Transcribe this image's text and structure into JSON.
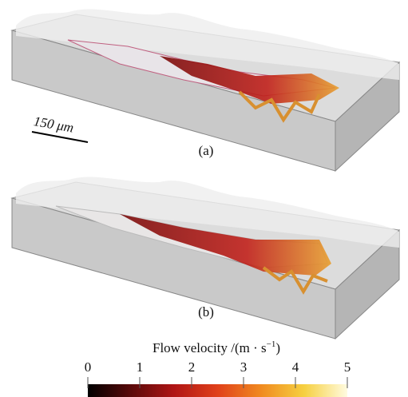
{
  "figure": {
    "scale_bar": "150 μm",
    "panels": [
      {
        "label": "(a)"
      },
      {
        "label": "(b)"
      }
    ],
    "colorbar": {
      "title": [
        "Flow velocity /(m · s",
        "−1",
        ")"
      ],
      "lim": [
        0,
        5
      ],
      "ticks": [
        0,
        1,
        2,
        3,
        4,
        5
      ],
      "colormap": [
        "#000000",
        "#5a0a0a",
        "#b01515",
        "#e0401a",
        "#f08a20",
        "#f6d040",
        "#fffbe0"
      ]
    }
  }
}
